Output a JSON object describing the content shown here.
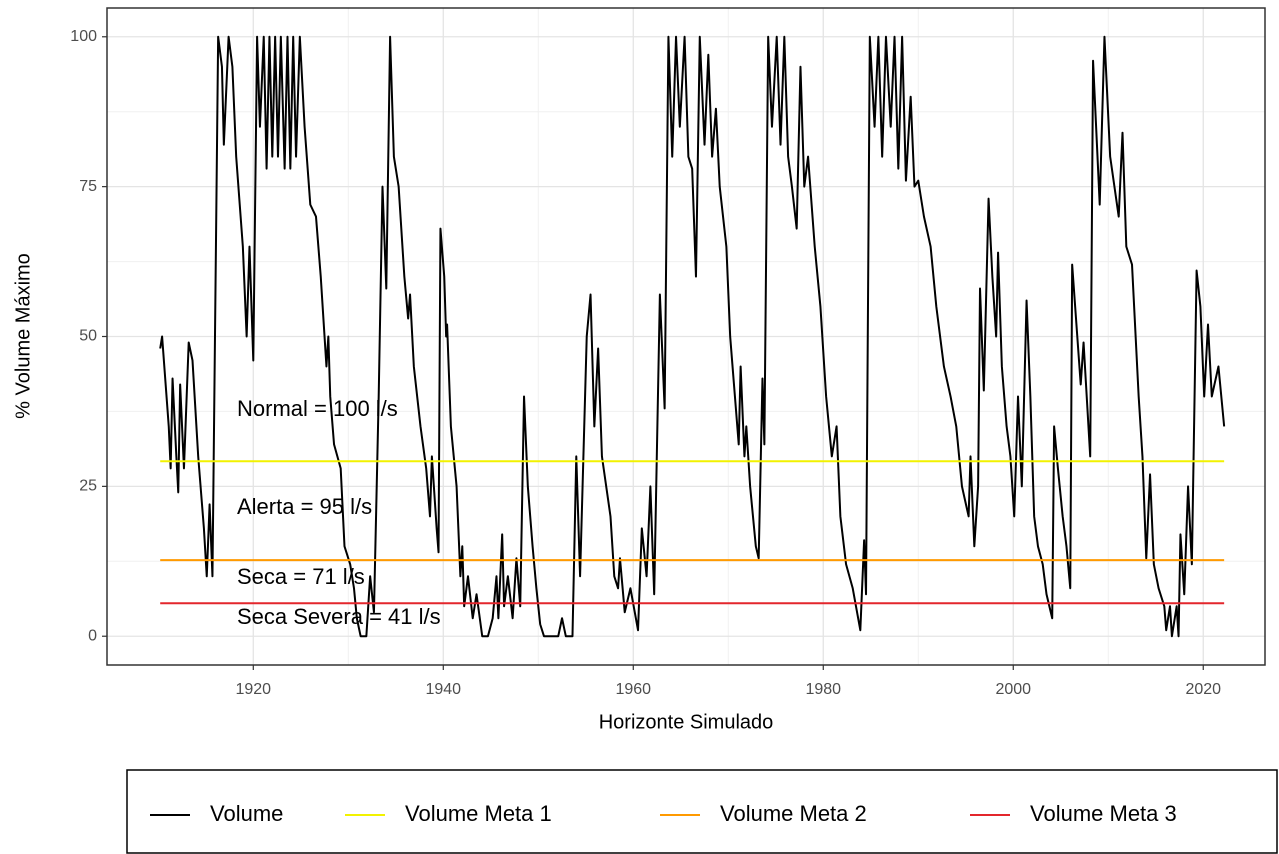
{
  "chart_data": {
    "type": "line",
    "title": null,
    "x_label": "Horizonte Simulado",
    "y_label": "% Volume Máximo",
    "xlim": [
      1904.6,
      2026.5
    ],
    "ylim": [
      -4.8,
      104.8
    ],
    "xticks": [
      1920,
      1940,
      1960,
      1980,
      2000,
      2020
    ],
    "yticks": [
      0,
      25,
      50,
      75,
      100
    ],
    "grid": true,
    "legend_position": "bottom",
    "annotations": [
      "Normal = 100 l/s",
      "Alerta = 95 l/s",
      "Seca = 71 l/s",
      "Seca Severa = 41 l/s"
    ],
    "series": [
      {
        "name": "Volume",
        "color": "#000000",
        "x": [
          1910.2,
          1910.4,
          1911.1,
          1911.3,
          1911.5,
          1911.9,
          1912.1,
          1912.3,
          1912.7,
          1913.2,
          1913.6,
          1914.2,
          1914.8,
          1915.1,
          1915.4,
          1915.7,
          1916.3,
          1916.7,
          1916.9,
          1917.4,
          1917.8,
          1918.2,
          1918.9,
          1919.3,
          1919.6,
          1920.0,
          1920.4,
          1920.7,
          1921.1,
          1921.4,
          1921.7,
          1922.0,
          1922.3,
          1922.6,
          1922.9,
          1923.3,
          1923.6,
          1923.9,
          1924.2,
          1924.5,
          1924.9,
          1925.4,
          1926.0,
          1926.6,
          1927.1,
          1927.5,
          1927.7,
          1927.9,
          1928.1,
          1928.5,
          1929.2,
          1929.6,
          1930.2,
          1930.6,
          1930.9,
          1931.3,
          1931.9,
          1932.3,
          1932.7,
          1933.2,
          1933.6,
          1934.0,
          1934.4,
          1934.8,
          1935.3,
          1935.9,
          1936.3,
          1936.5,
          1936.9,
          1937.6,
          1938.2,
          1938.6,
          1938.8,
          1939.3,
          1939.5,
          1939.7,
          1940.1,
          1940.3,
          1940.4,
          1940.8,
          1941.4,
          1941.8,
          1942.0,
          1942.2,
          1942.6,
          1943.1,
          1943.5,
          1944.1,
          1944.7,
          1945.2,
          1945.6,
          1945.8,
          1946.2,
          1946.4,
          1946.8,
          1947.3,
          1947.7,
          1948.1,
          1948.5,
          1948.9,
          1949.4,
          1949.8,
          1950.2,
          1950.6,
          1951.3,
          1952.1,
          1952.5,
          1952.9,
          1953.6,
          1954.0,
          1954.4,
          1955.1,
          1955.5,
          1955.9,
          1956.3,
          1956.7,
          1957.6,
          1958.0,
          1958.4,
          1958.6,
          1959.1,
          1959.7,
          1960.5,
          1960.9,
          1961.4,
          1961.8,
          1962.2,
          1962.8,
          1963.3,
          1963.7,
          1964.1,
          1964.5,
          1964.9,
          1965.4,
          1965.8,
          1966.2,
          1966.6,
          1967.0,
          1967.5,
          1967.9,
          1968.3,
          1968.7,
          1969.1,
          1969.8,
          1970.2,
          1970.6,
          1971.1,
          1971.3,
          1971.7,
          1971.9,
          1972.3,
          1972.9,
          1973.2,
          1973.6,
          1973.8,
          1974.2,
          1974.6,
          1975.1,
          1975.5,
          1975.9,
          1976.3,
          1976.7,
          1977.2,
          1977.6,
          1978.0,
          1978.4,
          1979.1,
          1979.7,
          1980.3,
          1980.9,
          1981.4,
          1981.8,
          1982.4,
          1983.1,
          1983.9,
          1984.3,
          1984.5,
          1984.9,
          1985.4,
          1985.8,
          1986.2,
          1986.6,
          1987.1,
          1987.5,
          1987.9,
          1988.3,
          1988.7,
          1989.2,
          1989.6,
          1990.0,
          1990.6,
          1991.3,
          1991.9,
          1992.7,
          1993.4,
          1994.0,
          1994.6,
          1995.3,
          1995.5,
          1995.9,
          1996.3,
          1996.5,
          1996.9,
          1997.4,
          1997.8,
          1998.2,
          1998.4,
          1998.8,
          1999.3,
          1999.7,
          2000.1,
          2000.5,
          2000.9,
          2001.4,
          2001.8,
          2002.2,
          2002.6,
          2003.1,
          2003.5,
          2004.1,
          2004.3,
          2004.7,
          2005.2,
          2005.6,
          2006.0,
          2006.2,
          2007.1,
          2007.4,
          2008.1,
          2008.4,
          2009.1,
          2009.6,
          2010.2,
          2011.1,
          2011.5,
          2011.9,
          2012.5,
          2013.2,
          2013.6,
          2014.0,
          2014.4,
          2014.8,
          2015.3,
          2015.9,
          2016.1,
          2016.5,
          2016.7,
          2017.2,
          2017.4,
          2017.6,
          2018.0,
          2018.4,
          2018.8,
          2019.3,
          2019.7,
          2020.1,
          2020.5,
          2020.9,
          2021.6,
          2022.2
        ],
        "values": [
          48,
          50,
          35,
          28,
          43,
          30,
          24,
          42,
          28,
          49,
          46,
          30,
          18,
          10,
          22,
          10,
          100,
          95,
          82,
          100,
          95,
          80,
          65,
          50,
          65,
          46,
          100,
          85,
          100,
          78,
          100,
          80,
          100,
          80,
          100,
          78,
          100,
          78,
          100,
          80,
          100,
          85,
          72,
          70,
          60,
          50,
          45,
          50,
          40,
          32,
          28,
          15,
          12,
          8,
          3,
          0,
          0,
          10,
          4,
          40,
          75,
          58,
          100,
          80,
          75,
          60,
          53,
          57,
          45,
          35,
          28,
          20,
          30,
          18,
          14,
          68,
          60,
          50,
          52,
          35,
          25,
          10,
          15,
          5,
          10,
          3,
          7,
          0,
          0,
          3,
          10,
          3,
          17,
          5,
          10,
          3,
          13,
          5,
          40,
          25,
          15,
          8,
          2,
          0,
          0,
          0,
          3,
          0,
          0,
          30,
          10,
          50,
          57,
          35,
          48,
          30,
          20,
          10,
          8,
          13,
          4,
          8,
          1,
          18,
          10,
          25,
          7,
          57,
          38,
          100,
          80,
          100,
          85,
          100,
          80,
          78,
          60,
          100,
          82,
          97,
          80,
          88,
          75,
          65,
          50,
          42,
          32,
          45,
          30,
          35,
          25,
          15,
          13,
          43,
          32,
          100,
          85,
          100,
          82,
          100,
          80,
          75,
          68,
          95,
          75,
          80,
          65,
          55,
          40,
          30,
          35,
          20,
          12,
          8,
          1,
          16,
          7,
          100,
          85,
          100,
          80,
          100,
          85,
          100,
          78,
          100,
          76,
          90,
          75,
          76,
          70,
          65,
          55,
          45,
          40,
          35,
          25,
          20,
          30,
          15,
          25,
          58,
          41,
          73,
          60,
          50,
          64,
          45,
          35,
          30,
          20,
          40,
          25,
          56,
          40,
          20,
          15,
          12,
          7,
          3,
          35,
          28,
          20,
          15,
          8,
          62,
          42,
          49,
          30,
          96,
          72,
          100,
          80,
          70,
          84,
          65,
          62,
          40,
          30,
          13,
          27,
          12,
          8,
          5,
          1,
          5,
          0,
          5,
          0,
          17,
          7,
          25,
          12,
          61,
          55,
          40,
          52,
          40,
          45,
          35
        ]
      },
      {
        "name": "Volume Meta 1",
        "color": "#f2f200",
        "x": [
          1910.2,
          2022.2
        ],
        "values": [
          29.2,
          29.2
        ]
      },
      {
        "name": "Volume Meta 2",
        "color": "#ff9a00",
        "x": [
          1910.2,
          2022.2
        ],
        "values": [
          12.7,
          12.7
        ]
      },
      {
        "name": "Volume Meta 3",
        "color": "#e3262c",
        "x": [
          1910.2,
          2022.2
        ],
        "values": [
          5.5,
          5.5
        ]
      }
    ]
  }
}
